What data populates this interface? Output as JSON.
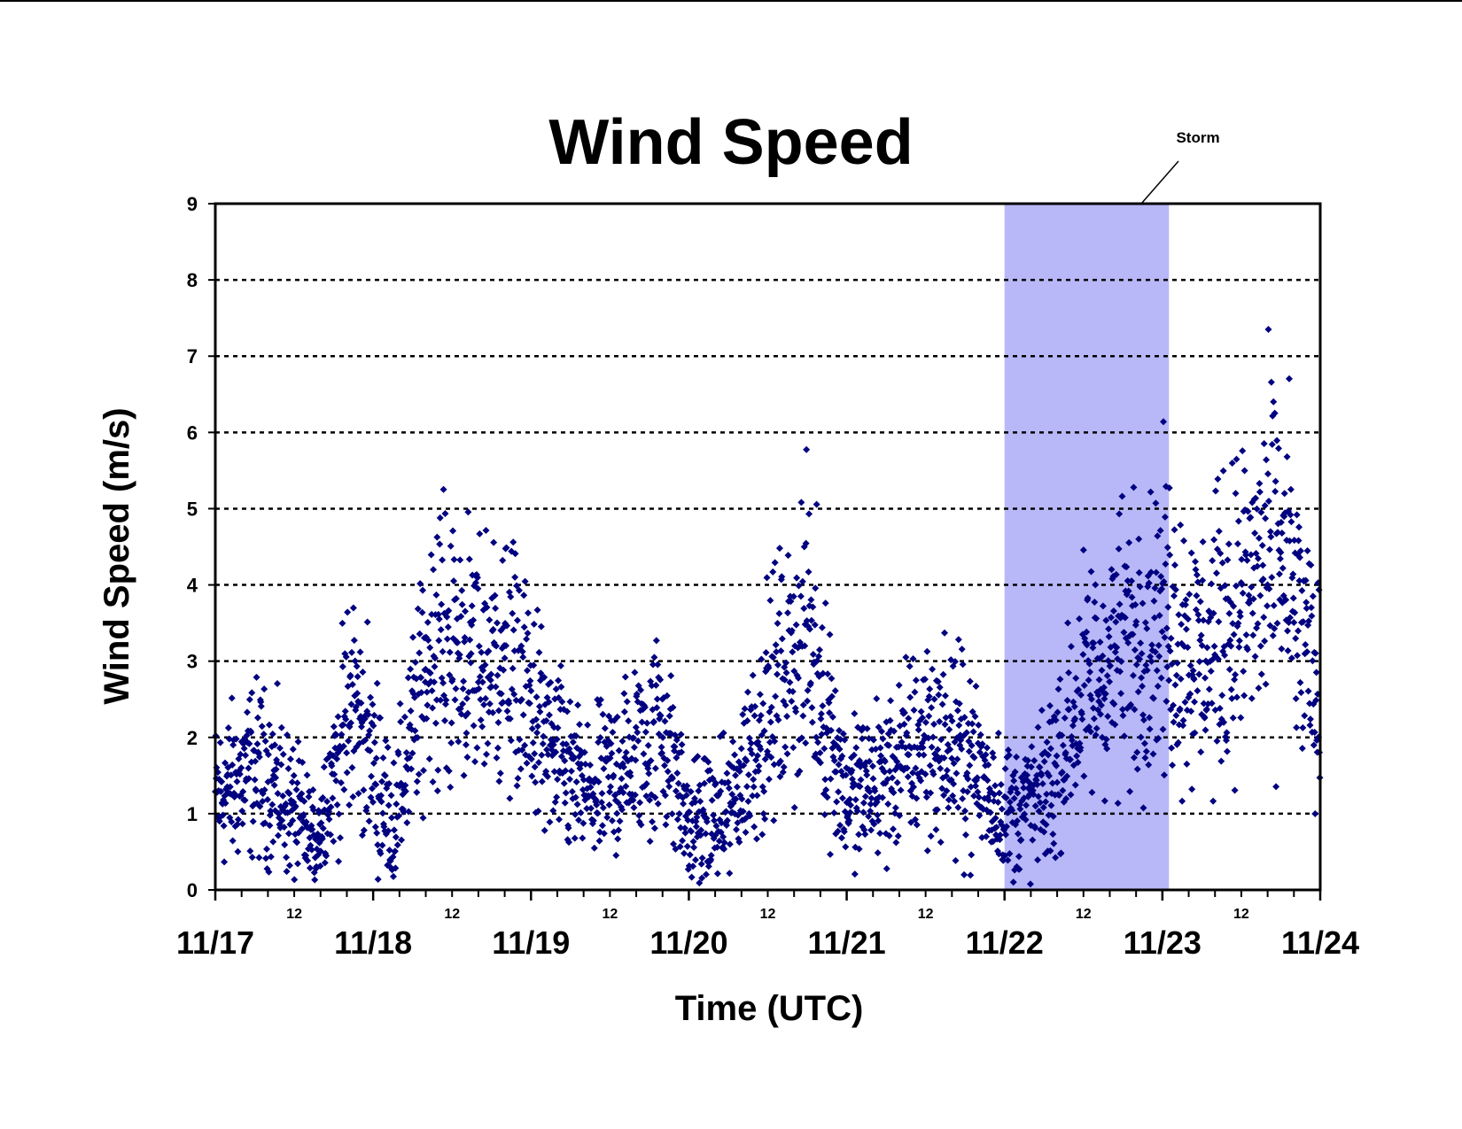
{
  "chart_data": {
    "type": "scatter",
    "title": "Wind Speed",
    "xlabel": "Time (UTC)",
    "ylabel": "Wind Speed (m/s)",
    "xlim": [
      "11/17",
      "11/24"
    ],
    "ylim": [
      0,
      9
    ],
    "y_ticks": [
      "0",
      "1",
      "2",
      "3",
      "4",
      "5",
      "6",
      "7",
      "8",
      "9"
    ],
    "x_major_ticks": [
      "11/17",
      "11/18",
      "11/19",
      "11/20",
      "11/21",
      "11/22",
      "11/23",
      "11/24"
    ],
    "x_minor_label": "12",
    "grid": "horizontal dotted lines at y = 1 through 8",
    "marker_color": "#000080",
    "marker_shape": "diamond",
    "annotation": {
      "text": "Storm",
      "x_start": "11/22 00:00",
      "x_end": "11/23 01:00",
      "color": "#b8b8f8"
    },
    "series": [
      {
        "x": [
          "11/17 00:00",
          "11/17 06:00",
          "11/17 09:00",
          "11/17 15:00",
          "11/17 21:00",
          "11/18 03:00",
          "11/18 09:00",
          "11/18 15:00",
          "11/18 21:00",
          "11/19 03:00",
          "11/19 09:00",
          "11/19 15:00",
          "11/19 20:00",
          "11/20 00:00",
          "11/20 06:00",
          "11/20 12:00",
          "11/20 18:00",
          "11/21 00:00",
          "11/21 06:00",
          "11/21 12:00",
          "11/21 18:00",
          "11/22 00:00",
          "11/22 06:00",
          "11/22 12:00",
          "11/22 18:00",
          "11/23 00:00",
          "11/23 06:00",
          "11/23 12:00",
          "11/23 18:00",
          "11/24 00:00"
        ],
        "y": [
          1.2,
          1.6,
          1.4,
          0.6,
          2.5,
          0.8,
          3.3,
          3.0,
          3.0,
          1.8,
          1.2,
          1.7,
          2.2,
          0.8,
          1.0,
          2.4,
          3.4,
          1.2,
          1.5,
          2.0,
          1.8,
          1.0,
          1.2,
          2.6,
          3.2,
          3.6,
          3.0,
          3.8,
          4.5,
          2.3
        ]
      }
    ]
  }
}
